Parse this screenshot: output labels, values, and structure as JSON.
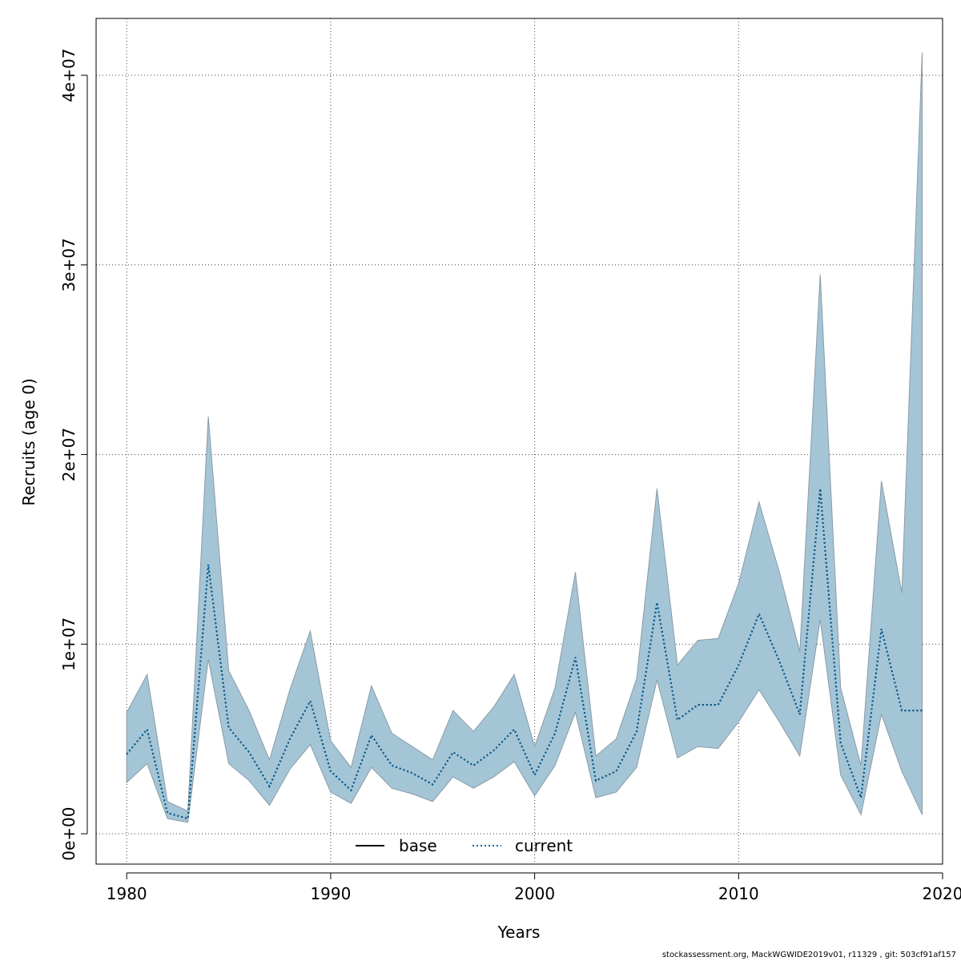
{
  "chart_data": {
    "type": "area",
    "xlabel": "Years",
    "ylabel": "Recruits (age 0)",
    "xlim": [
      1978.5,
      2020
    ],
    "ylim": [
      -1600000,
      43000000
    ],
    "x_ticks": [
      1980,
      1990,
      2000,
      2010,
      2020
    ],
    "x_tick_labels": [
      "1980",
      "1990",
      "2000",
      "2010",
      "2020"
    ],
    "y_ticks": [
      0,
      10000000,
      20000000,
      30000000,
      40000000
    ],
    "y_tick_labels": [
      "0e+00",
      "1e+07",
      "2e+07",
      "3e+07",
      "4e+07"
    ],
    "grid": true,
    "legend_position": "bottom-center",
    "band_color": "#a4c5d6",
    "band_edge_color": "#8a9ba6",
    "x": [
      1980,
      1981,
      1982,
      1983,
      1984,
      1985,
      1986,
      1987,
      1988,
      1989,
      1990,
      1991,
      1992,
      1993,
      1994,
      1995,
      1996,
      1997,
      1998,
      1999,
      2000,
      2001,
      2002,
      2003,
      2004,
      2005,
      2006,
      2007,
      2008,
      2009,
      2010,
      2011,
      2012,
      2013,
      2014,
      2015,
      2016,
      2017,
      2018,
      2019
    ],
    "band_upper": [
      6400000,
      8400000,
      1700000,
      1200000,
      22000000,
      8600000,
      6500000,
      3900000,
      7600000,
      10700000,
      4900000,
      3500000,
      7800000,
      5300000,
      4600000,
      3900000,
      6500000,
      5400000,
      6700000,
      8400000,
      4600000,
      7700000,
      13800000,
      4100000,
      5000000,
      8200000,
      18200000,
      8900000,
      10200000,
      10300000,
      13200000,
      17500000,
      13800000,
      9600000,
      29500000,
      7700000,
      3600000,
      18600000,
      12700000,
      41200000
    ],
    "band_lower": [
      2700000,
      3700000,
      800000,
      600000,
      9200000,
      3700000,
      2800000,
      1500000,
      3400000,
      4700000,
      2200000,
      1600000,
      3500000,
      2400000,
      2100000,
      1700000,
      3000000,
      2400000,
      3000000,
      3800000,
      2000000,
      3600000,
      6400000,
      1900000,
      2200000,
      3500000,
      8100000,
      4000000,
      4600000,
      4500000,
      5900000,
      7600000,
      5900000,
      4100000,
      11300000,
      3100000,
      1000000,
      6300000,
      3300000,
      1000000
    ],
    "series": [
      {
        "name": "base",
        "color": "#000000",
        "style": "solid",
        "values": [
          4200000,
          5500000,
          1100000,
          800000,
          14200000,
          5600000,
          4300000,
          2500000,
          5000000,
          7000000,
          3300000,
          2300000,
          5200000,
          3600000,
          3200000,
          2600000,
          4300000,
          3600000,
          4400000,
          5500000,
          3100000,
          5300000,
          9300000,
          2800000,
          3300000,
          5400000,
          12200000,
          6000000,
          6800000,
          6800000,
          8900000,
          11600000,
          9100000,
          6300000,
          18200000,
          4800000,
          1900000,
          10800000,
          6500000,
          6500000
        ]
      },
      {
        "name": "current",
        "color": "#00609c",
        "style": "dotted",
        "values": [
          4200000,
          5500000,
          1100000,
          800000,
          14200000,
          5600000,
          4300000,
          2500000,
          5000000,
          7000000,
          3300000,
          2300000,
          5200000,
          3600000,
          3200000,
          2600000,
          4300000,
          3600000,
          4400000,
          5500000,
          3100000,
          5300000,
          9300000,
          2800000,
          3300000,
          5400000,
          12200000,
          6000000,
          6800000,
          6800000,
          8900000,
          11600000,
          9100000,
          6300000,
          18200000,
          4800000,
          1900000,
          10800000,
          6500000,
          6500000
        ]
      }
    ]
  },
  "footer": "stockassessment.org, MackWGWIDE2019v01, r11329 , git: 503cf91af157"
}
